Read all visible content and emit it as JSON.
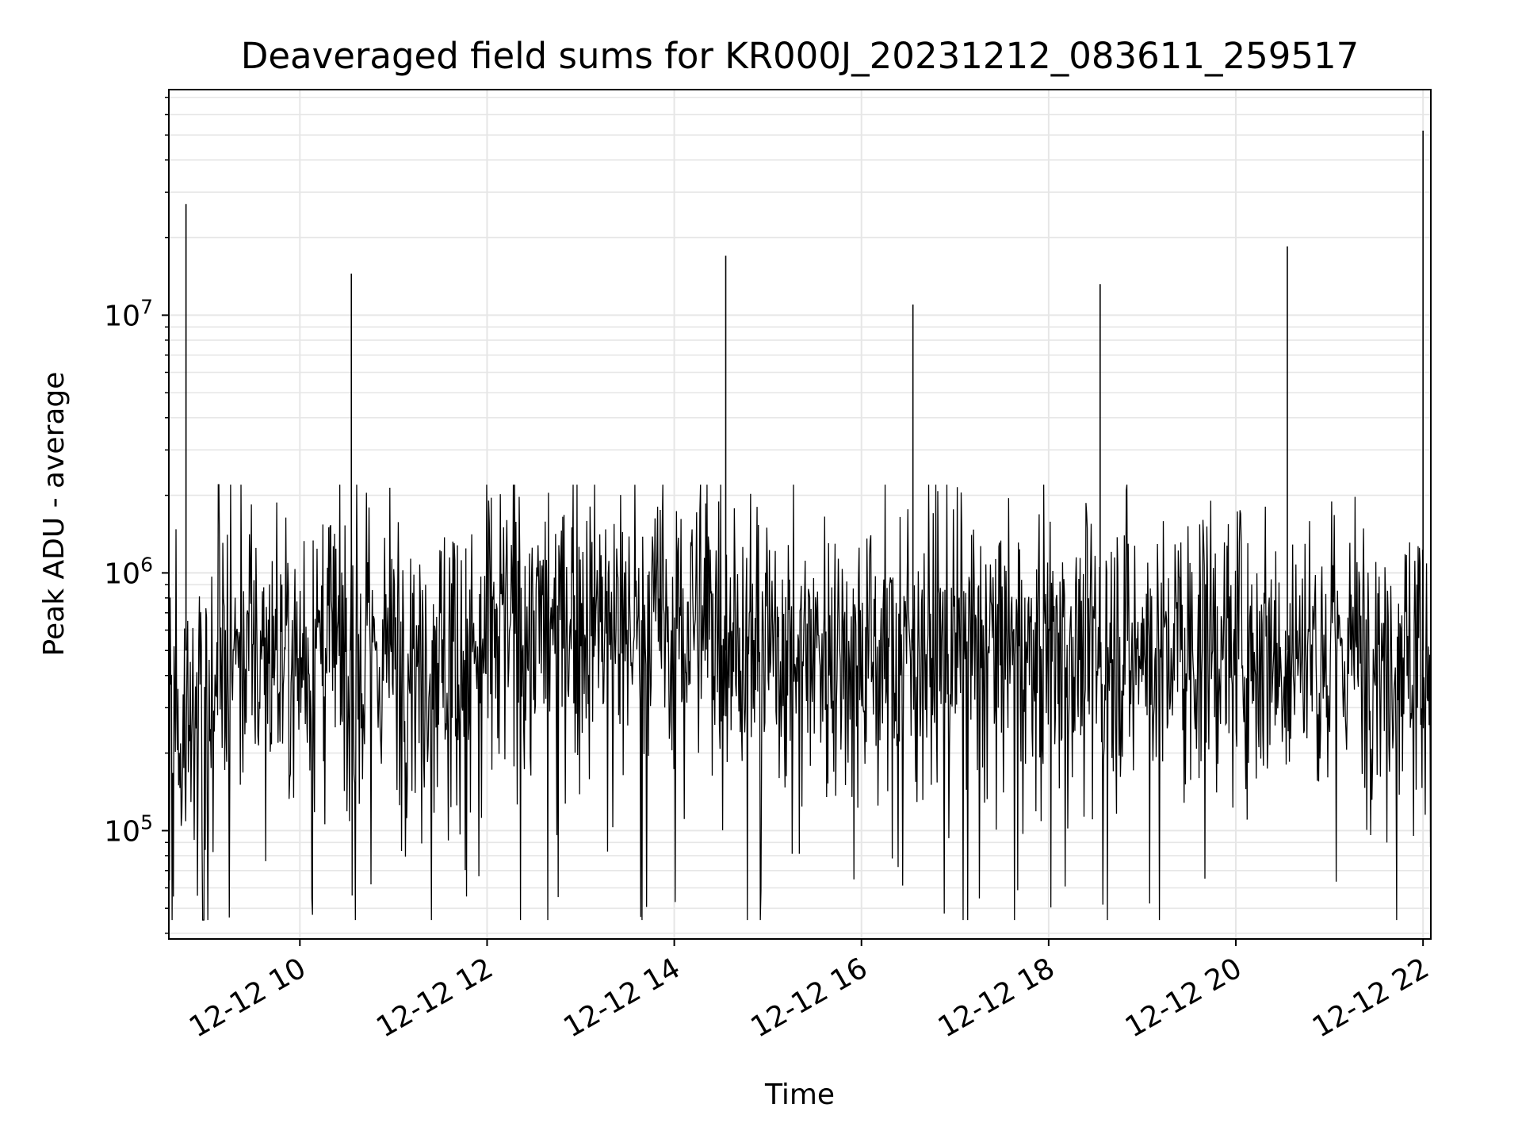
{
  "chart_data": {
    "type": "line",
    "title": "Deaveraged field sums for KR000J_20231212_083611_259517",
    "xlabel": "Time",
    "ylabel": "Peak ADU - average",
    "x_axis": {
      "kind": "time",
      "range": [
        "2023-12-12T08:36",
        "2023-12-12T22:05"
      ],
      "tick_values": [
        "2023-12-12T10:00",
        "2023-12-12T12:00",
        "2023-12-12T14:00",
        "2023-12-12T16:00",
        "2023-12-12T18:00",
        "2023-12-12T20:00",
        "2023-12-12T22:00"
      ],
      "tick_labels": [
        "12-12 10",
        "12-12 12",
        "12-12 14",
        "12-12 16",
        "12-12 18",
        "12-12 20",
        "12-12 22"
      ]
    },
    "y_axis": {
      "scale": "log",
      "range": [
        38000,
        75000000
      ],
      "major_tick_values": [
        100000,
        1000000,
        10000000
      ],
      "major_tick_labels": [
        {
          "base": "10",
          "exp": "5"
        },
        {
          "base": "10",
          "exp": "6"
        },
        {
          "base": "10",
          "exp": "7"
        }
      ]
    },
    "grid": true,
    "line_color": "#000000",
    "grid_color": "#e6e6e6",
    "baseline_segments": [
      {
        "start": "2023-12-12T08:36",
        "end": "2023-12-12T09:05",
        "median": 270000,
        "spread": 0.6
      },
      {
        "start": "2023-12-12T09:05",
        "end": "2023-12-12T12:00",
        "median": 500000,
        "spread": 0.6
      },
      {
        "start": "2023-12-12T12:00",
        "end": "2023-12-12T14:40",
        "median": 650000,
        "spread": 0.55
      },
      {
        "start": "2023-12-12T14:40",
        "end": "2023-12-12T22:05",
        "median": 520000,
        "spread": 0.55
      }
    ],
    "spikes": [
      {
        "x": "2023-12-12T08:47",
        "y": 27000000
      },
      {
        "x": "2023-12-12T10:33",
        "y": 14500000
      },
      {
        "x": "2023-12-12T14:33",
        "y": 17000000
      },
      {
        "x": "2023-12-12T16:33",
        "y": 11000000
      },
      {
        "x": "2023-12-12T18:33",
        "y": 13200000
      },
      {
        "x": "2023-12-12T20:33",
        "y": 18500000
      },
      {
        "x": "2023-12-12T22:00",
        "y": 52000000
      }
    ],
    "sample_interval_seconds": 25
  }
}
